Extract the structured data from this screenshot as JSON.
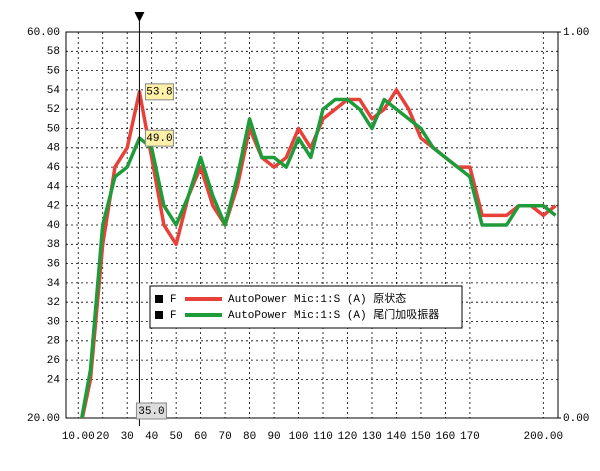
{
  "chart_data": {
    "type": "line",
    "x": [
      10,
      15,
      20,
      25,
      30,
      35,
      40,
      45,
      50,
      55,
      60,
      65,
      70,
      75,
      80,
      85,
      90,
      95,
      100,
      105,
      110,
      115,
      120,
      125,
      130,
      135,
      140,
      145,
      150,
      155,
      160,
      165,
      170,
      175,
      180,
      185,
      190,
      195,
      200,
      205
    ],
    "series": [
      {
        "name": "AutoPower Mic:1:S (A) 原状态",
        "marker_label": "F",
        "color": "#e8413a",
        "values": [
          18,
          24,
          38,
          46,
          48,
          53.8,
          47,
          40,
          38,
          43,
          46,
          42,
          40,
          44,
          50,
          47,
          46,
          47,
          50,
          48,
          51,
          52,
          53,
          53,
          51,
          52,
          54,
          52,
          49,
          48,
          47,
          46,
          46,
          41,
          41,
          41,
          42,
          42,
          41,
          42
        ]
      },
      {
        "name": "AutoPower Mic:1:S (A) 尾门加吸振器",
        "marker_label": "F",
        "color": "#1e9c3a",
        "values": [
          18,
          25,
          40,
          45,
          46,
          49,
          48,
          42,
          40,
          43,
          47,
          43,
          40,
          45,
          51,
          47,
          47,
          46,
          49,
          47,
          52,
          53,
          53,
          52,
          50,
          53,
          52,
          51,
          50,
          48,
          47,
          46,
          45,
          40,
          40,
          40,
          42,
          42,
          42,
          41
        ]
      }
    ],
    "xlim": [
      5,
      206
    ],
    "xticks": [
      {
        "value": 10,
        "label": "10.00"
      },
      20,
      30,
      40,
      50,
      60,
      70,
      80,
      90,
      100,
      110,
      120,
      130,
      140,
      150,
      160,
      170,
      {
        "value": 200,
        "label": "200.00"
      }
    ],
    "ylim": [
      20,
      60
    ],
    "yticks": [
      {
        "value": 20,
        "label": "20.00"
      },
      24,
      26,
      28,
      30,
      32,
      34,
      36,
      38,
      40,
      42,
      44,
      46,
      48,
      50,
      52,
      54,
      56,
      58,
      {
        "value": 60,
        "label": "60.00"
      }
    ],
    "y2lim": [
      0,
      1
    ],
    "y2ticks": [
      {
        "value": 0,
        "label": "0.00"
      },
      {
        "value": 1,
        "label": "1.00"
      }
    ],
    "grid": true,
    "cursor": {
      "x": {
        "value": 35,
        "label": "35.0"
      },
      "readouts": [
        {
          "value": 53.8,
          "label": "53.8"
        },
        {
          "value": 49,
          "label": "49.0"
        }
      ]
    }
  }
}
